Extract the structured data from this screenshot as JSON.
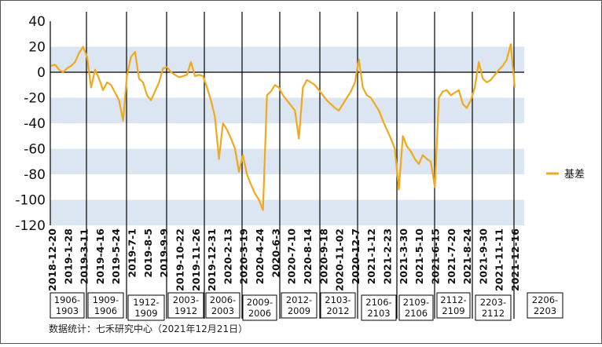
{
  "chart_data": {
    "type": "line",
    "ylim": [
      -120,
      40
    ],
    "yticks": [
      40,
      20,
      0,
      -20,
      -40,
      -60,
      -80,
      -100,
      -120
    ],
    "grid": "horizontal bands",
    "legend_position": "right",
    "x_tick_labels": [
      "2018-12-20",
      "2019-1-28",
      "2019-3-11",
      "2019-4-16",
      "2019-5-24",
      "2019-7-1",
      "2019-8-5",
      "2019-9-9",
      "2019-10-22",
      "2019-11-26",
      "2019-12-31",
      "2020-2-13",
      "2020-3-19",
      "2020-4-24",
      "2020-6-3",
      "2020-7-10",
      "2020-8-14",
      "2020-9-18",
      "2020-11-02",
      "2020-12-7",
      "2021-1-12",
      "2021-2-23",
      "2021-3-30",
      "2021-5-10",
      "2021-6-15",
      "2021-7-20",
      "2021-8-24",
      "2021-9-30",
      "2021-11-11",
      "2021-12-16"
    ],
    "contract_labels": [
      [
        "1906-",
        "1903"
      ],
      [
        "1909-",
        "1906"
      ],
      [
        "1912-",
        "1909"
      ],
      [
        "2003-",
        "1912"
      ],
      [
        "2006-",
        "2003"
      ],
      [
        "2009-",
        "2006"
      ],
      [
        "2012-",
        "2009"
      ],
      [
        "2103-",
        "2012"
      ],
      [
        "2106-",
        "2103"
      ],
      [
        "2109-",
        "2106"
      ],
      [
        "2112-",
        "2109"
      ],
      [
        "2203-",
        "2112"
      ],
      [
        "2206-",
        "2203"
      ]
    ],
    "series": [
      {
        "name": "基差",
        "color": "#f0a91c",
        "values": [
          5,
          6,
          2,
          0,
          3,
          5,
          8,
          15,
          20,
          12,
          -12,
          2,
          -5,
          -14,
          -8,
          -10,
          -16,
          -22,
          -38,
          -2,
          12,
          16,
          -5,
          -8,
          -18,
          -22,
          -15,
          -8,
          3,
          4,
          0,
          -2,
          -4,
          -3,
          -2,
          8,
          -3,
          -2,
          -3,
          -12,
          -22,
          -35,
          -68,
          -40,
          -45,
          -52,
          -60,
          -78,
          -65,
          -80,
          -88,
          -95,
          -100,
          -108,
          -18,
          -15,
          -10,
          -12,
          -18,
          -22,
          -26,
          -30,
          -52,
          -12,
          -6,
          -8,
          -10,
          -14,
          -18,
          -22,
          -25,
          -28,
          -30,
          -25,
          -20,
          -15,
          -8,
          10,
          -12,
          -18,
          -20,
          -25,
          -30,
          -38,
          -45,
          -52,
          -60,
          -92,
          -50,
          -58,
          -62,
          -68,
          -72,
          -65,
          -68,
          -70,
          -90,
          -20,
          -15,
          -14,
          -18,
          -16,
          -14,
          -25,
          -28,
          -22,
          -12,
          8,
          -5,
          -8,
          -6,
          -2,
          2,
          5,
          10,
          22,
          -12
        ]
      }
    ],
    "footer": "数据统计：七禾研究中心（2021年12月21日）"
  }
}
